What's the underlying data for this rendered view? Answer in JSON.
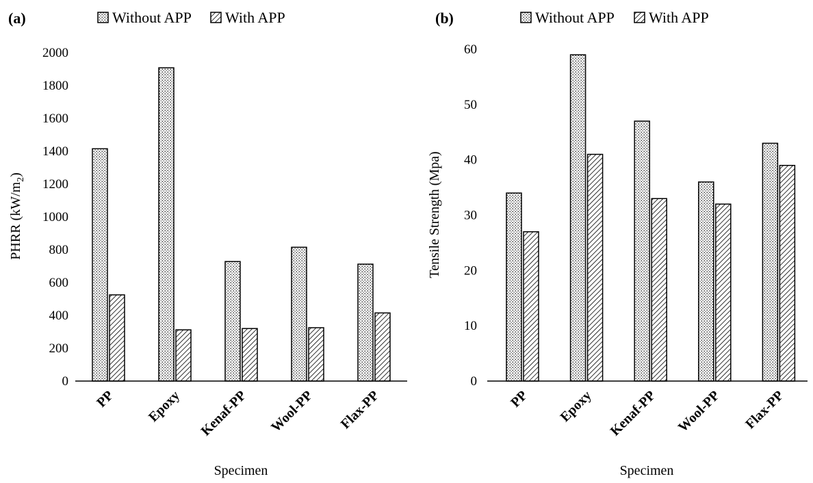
{
  "chart_data": [
    {
      "type": "bar",
      "panel_label": "(a)",
      "categories": [
        "PP",
        "Epoxy",
        "Kenaf-PP",
        "Wool-PP",
        "Flax-PP"
      ],
      "series": [
        {
          "name": "Without APP",
          "values": [
            1415,
            1908,
            728,
            815,
            712
          ],
          "pattern": "dots"
        },
        {
          "name": "With APP",
          "values": [
            525,
            312,
            320,
            325,
            415
          ],
          "pattern": "hatch"
        }
      ],
      "xlabel": "Specimen",
      "ylabel": "PHRR (kW/m",
      "ylabel_sub": "2",
      "ylabel_tail": ")",
      "ylim": [
        0,
        2000
      ],
      "yticks": [
        0,
        200,
        400,
        600,
        800,
        1000,
        1200,
        1400,
        1600,
        1800,
        2000
      ],
      "grid": false,
      "legend": "top"
    },
    {
      "type": "bar",
      "panel_label": "(b)",
      "categories": [
        "PP",
        "Epoxy",
        "Kenaf-PP",
        "Wool-PP",
        "Flax-PP"
      ],
      "series": [
        {
          "name": "Without APP",
          "values": [
            34,
            59,
            47,
            36,
            43
          ],
          "pattern": "dots"
        },
        {
          "name": "With APP",
          "values": [
            27,
            41,
            33,
            32,
            39
          ],
          "pattern": "hatch"
        }
      ],
      "xlabel": "Specimen",
      "ylabel": "Tensile Strength (Mpa)",
      "ylim": [
        0,
        60
      ],
      "yticks": [
        0,
        10,
        20,
        30,
        40,
        50,
        60
      ],
      "grid": false,
      "legend": "top"
    }
  ]
}
